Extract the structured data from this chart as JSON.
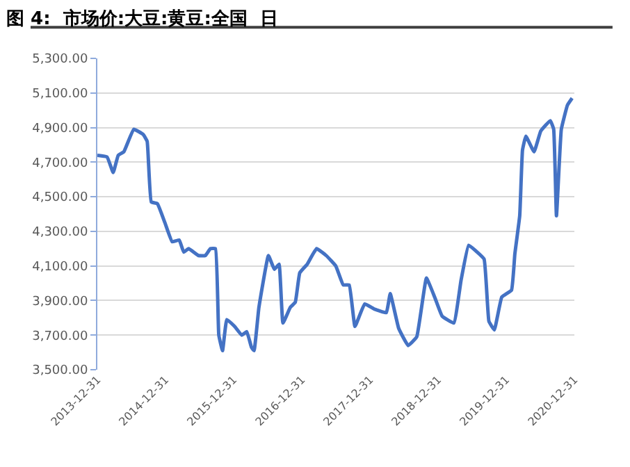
{
  "chart_data": {
    "type": "line",
    "title": "图 4:  市场价:大豆:黄豆:全国  日",
    "x": [
      "2013-12-31",
      "2014-02-21",
      "2014-03-26",
      "2014-04-22",
      "2014-05-22",
      "2014-07-14",
      "2014-09-03",
      "2014-09-24",
      "2014-10-16",
      "2014-11-18",
      "2014-12-28",
      "2015-02-05",
      "2015-03-15",
      "2015-04-08",
      "2015-05-04",
      "2015-06-26",
      "2015-08-02",
      "2015-08-29",
      "2015-09-25",
      "2015-10-13",
      "2015-11-02",
      "2015-11-25",
      "2016-01-06",
      "2016-02-13",
      "2016-03-11",
      "2016-04-05",
      "2016-04-19",
      "2016-05-15",
      "2016-07-05",
      "2016-08-06",
      "2016-08-31",
      "2016-09-21",
      "2016-10-30",
      "2016-11-26",
      "2016-12-20",
      "2017-01-29",
      "2017-03-20",
      "2017-05-11",
      "2017-07-01",
      "2017-08-10",
      "2017-09-11",
      "2017-10-12",
      "2017-12-03",
      "2018-01-25",
      "2018-03-29",
      "2018-04-19",
      "2018-06-03",
      "2018-07-24",
      "2018-09-08",
      "2018-10-30",
      "2018-12-13",
      "2019-01-22",
      "2019-03-26",
      "2019-05-04",
      "2019-06-13",
      "2019-07-19",
      "2019-09-04",
      "2019-09-30",
      "2019-10-29",
      "2019-12-08",
      "2020-01-29",
      "2020-02-16",
      "2020-03-13",
      "2020-03-28",
      "2020-04-15",
      "2020-05-29",
      "2020-07-04",
      "2020-08-24",
      "2020-09-11",
      "2020-09-26",
      "2020-10-22",
      "2020-11-24",
      "2020-12-19"
    ],
    "series": [
      {
        "color": "#4472c4",
        "values": [
          4740,
          4730,
          4640,
          4740,
          4760,
          4890,
          4860,
          4820,
          4470,
          4460,
          4350,
          4240,
          4250,
          4180,
          4200,
          4160,
          4160,
          4200,
          4200,
          3700,
          3610,
          3790,
          3750,
          3700,
          3720,
          3630,
          3610,
          3860,
          4160,
          4080,
          4110,
          3770,
          3860,
          3890,
          4060,
          4110,
          4200,
          4160,
          4100,
          3990,
          3990,
          3750,
          3880,
          3850,
          3830,
          3940,
          3740,
          3640,
          3690,
          4030,
          3920,
          3810,
          3770,
          4020,
          4220,
          4190,
          4140,
          3780,
          3730,
          3920,
          3960,
          4170,
          4390,
          4770,
          4850,
          4760,
          4880,
          4940,
          4890,
          4390,
          4890,
          5030,
          5070
        ]
      }
    ],
    "xlim": [
      "2013-12-31",
      "2020-12-31"
    ],
    "xticks": [
      "2013-12-31",
      "2014-12-31",
      "2015-12-31",
      "2016-12-31",
      "2017-12-31",
      "2018-12-31",
      "2019-12-31",
      "2020-12-31"
    ],
    "ylim": [
      3500,
      5300
    ],
    "yticks": [
      {
        "value": 3500,
        "label": "3,500.00"
      },
      {
        "value": 3700,
        "label": "3,700.00"
      },
      {
        "value": 3900,
        "label": "3,900.00"
      },
      {
        "value": 4100,
        "label": "4,100.00"
      },
      {
        "value": 4300,
        "label": "4,300.00"
      },
      {
        "value": 4500,
        "label": "4,500.00"
      },
      {
        "value": 4700,
        "label": "4,700.00"
      },
      {
        "value": 4900,
        "label": "4,900.00"
      },
      {
        "value": 5100,
        "label": "5,100.00"
      },
      {
        "value": 5300,
        "label": "5,300.00"
      }
    ],
    "grid": "y",
    "marker": "none",
    "line_style": "solid"
  }
}
